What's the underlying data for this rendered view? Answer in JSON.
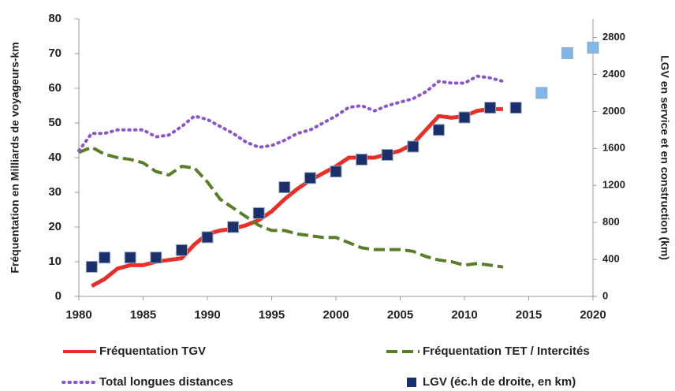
{
  "chart_data": {
    "type": "line",
    "y_label": "Fréquentation en Milliards de voyageurs-km",
    "y2_label": "LGV en service et en construction (km)",
    "xlim": [
      1980,
      2020
    ],
    "xticks": [
      1980,
      1985,
      1990,
      1995,
      2000,
      2005,
      2010,
      2015,
      2020
    ],
    "ylim": [
      0,
      80
    ],
    "yticks": [
      0,
      10,
      20,
      30,
      40,
      50,
      60,
      70,
      80
    ],
    "y2lim": [
      0,
      3000
    ],
    "y2ticks": [
      0,
      400,
      800,
      1200,
      1600,
      2000,
      2400,
      2800
    ],
    "grid": false,
    "series": [
      {
        "name": "Fréquentation TGV",
        "color": "#e8302a",
        "style": "solid",
        "x": [
          1981,
          1982,
          1983,
          1984,
          1985,
          1986,
          1987,
          1988,
          1989,
          1990,
          1991,
          1992,
          1993,
          1994,
          1995,
          1996,
          1997,
          1998,
          1999,
          2000,
          2001,
          2002,
          2003,
          2004,
          2005,
          2006,
          2007,
          2008,
          2009,
          2010,
          2011,
          2012,
          2013
        ],
        "values": [
          3,
          5,
          8,
          9,
          9,
          10,
          10.5,
          11,
          15,
          18,
          19,
          19.5,
          20.5,
          22,
          24.5,
          28,
          31,
          33.5,
          35.5,
          37.5,
          40,
          40,
          40,
          41,
          42,
          44,
          48,
          52,
          51.5,
          52,
          53.5,
          54,
          54
        ]
      },
      {
        "name": "Fréquentation TET / Intercités",
        "color": "#5a7d2a",
        "style": "dashed",
        "x": [
          1980,
          1981,
          1982,
          1983,
          1984,
          1985,
          1986,
          1987,
          1988,
          1989,
          1990,
          1991,
          1992,
          1993,
          1994,
          1995,
          1996,
          1997,
          1998,
          1999,
          2000,
          2001,
          2002,
          2003,
          2004,
          2005,
          2006,
          2007,
          2008,
          2009,
          2010,
          2011,
          2012,
          2013
        ],
        "values": [
          41.5,
          43,
          41,
          40,
          39.5,
          38.5,
          36,
          35,
          37.5,
          37,
          33,
          28,
          25.5,
          23,
          20.5,
          19,
          19,
          18,
          17.5,
          17,
          17,
          15.5,
          14,
          13.5,
          13.5,
          13.5,
          13,
          11.5,
          10.5,
          10,
          9,
          9.5,
          9,
          8.5
        ]
      },
      {
        "name": "Total longues distances",
        "color": "#8a55c8",
        "style": "dotted",
        "x": [
          1980,
          1981,
          1982,
          1983,
          1984,
          1985,
          1986,
          1987,
          1988,
          1989,
          1990,
          1991,
          1992,
          1993,
          1994,
          1995,
          1996,
          1997,
          1998,
          1999,
          2000,
          2001,
          2002,
          2003,
          2004,
          2005,
          2006,
          2007,
          2008,
          2009,
          2010,
          2011,
          2012,
          2013
        ],
        "values": [
          42,
          47,
          47,
          48,
          48,
          48,
          46,
          46.5,
          49,
          52,
          51,
          49,
          47,
          44.5,
          43,
          43.5,
          45,
          47,
          48,
          50,
          52,
          54.5,
          55,
          53.5,
          55,
          56,
          57,
          59,
          62,
          61.5,
          61.5,
          63.5,
          63,
          62
        ]
      },
      {
        "name": "LGV (éc.h de droite, en km)",
        "color": "#1a2f6b",
        "style": "marker",
        "axis": "y2",
        "x": [
          1981,
          1982,
          1984,
          1986,
          1988,
          1990,
          1992,
          1994,
          1996,
          1998,
          2000,
          2002,
          2004,
          2006,
          2008,
          2010,
          2012,
          2014,
          2016,
          2018,
          2020
        ],
        "values": [
          320,
          420,
          420,
          420,
          500,
          640,
          750,
          900,
          1180,
          1280,
          1350,
          1480,
          1530,
          1620,
          1800,
          1935,
          2040,
          2040,
          2200,
          2630,
          2690
        ],
        "point_colors": [
          "#1a2f6b",
          "#1a2f6b",
          "#1a2f6b",
          "#1a2f6b",
          "#1a2f6b",
          "#1a2f6b",
          "#1a2f6b",
          "#1a2f6b",
          "#1a2f6b",
          "#1a2f6b",
          "#1a2f6b",
          "#1a2f6b",
          "#1a2f6b",
          "#1a2f6b",
          "#1a2f6b",
          "#1a2f6b",
          "#1a2f6b",
          "#1a2f6b",
          "#7fb8e8",
          "#7fb8e8",
          "#7fb8e8"
        ]
      }
    ]
  }
}
